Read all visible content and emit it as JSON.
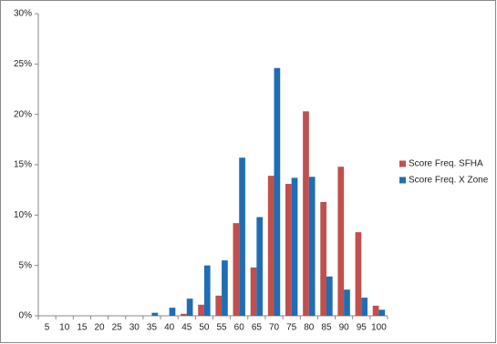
{
  "chart_data": {
    "type": "bar",
    "categories": [
      "5",
      "10",
      "15",
      "20",
      "25",
      "30",
      "35",
      "40",
      "45",
      "50",
      "55",
      "60",
      "65",
      "70",
      "75",
      "80",
      "85",
      "90",
      "95",
      "100"
    ],
    "series": [
      {
        "name": "Score Freq. SFHA",
        "color": "#c0504d",
        "values": [
          0,
          0,
          0,
          0,
          0,
          0,
          0,
          0,
          0.2,
          1.1,
          2.0,
          9.2,
          4.8,
          13.9,
          13.1,
          20.3,
          11.3,
          14.8,
          8.3,
          1.0
        ]
      },
      {
        "name": "Score Freq. X Zone",
        "color": "#1f6db5",
        "values": [
          0,
          0,
          0,
          0,
          0,
          0,
          0.3,
          0.8,
          1.7,
          5.0,
          5.5,
          15.7,
          9.8,
          24.6,
          13.7,
          13.8,
          3.9,
          2.6,
          1.8,
          0.6
        ]
      }
    ],
    "ylim": [
      0,
      30
    ],
    "yticks": [
      {
        "value": 0,
        "label": "0%"
      },
      {
        "value": 5,
        "label": "5%"
      },
      {
        "value": 10,
        "label": "10%"
      },
      {
        "value": 15,
        "label": "15%"
      },
      {
        "value": 20,
        "label": "20%"
      },
      {
        "value": 25,
        "label": "25%"
      },
      {
        "value": 30,
        "label": "30%"
      }
    ],
    "grid": false,
    "legend": "right"
  }
}
